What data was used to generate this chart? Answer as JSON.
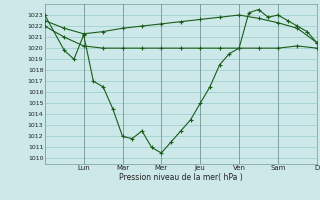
{
  "xlabel": "Pression niveau de la mer( hPa )",
  "background_color": "#cce8e8",
  "grid_color": "#99cccc",
  "line_color": "#1a5c1a",
  "line1_x": [
    0,
    12,
    24,
    36,
    48,
    60,
    72,
    84,
    96,
    108,
    120,
    132,
    144,
    156,
    168
  ],
  "line1_y": [
    1022.5,
    1021.8,
    1021.3,
    1021.5,
    1021.8,
    1022.0,
    1022.2,
    1022.4,
    1022.6,
    1022.8,
    1023.0,
    1022.7,
    1022.3,
    1021.8,
    1020.5
  ],
  "line2_x": [
    0,
    12,
    24,
    36,
    48,
    60,
    72,
    84,
    96,
    108,
    120,
    132,
    144,
    156,
    168
  ],
  "line2_y": [
    1022.0,
    1021.0,
    1020.2,
    1020.0,
    1020.0,
    1020.0,
    1020.0,
    1020.0,
    1020.0,
    1020.0,
    1020.0,
    1020.0,
    1020.0,
    1020.2,
    1020.0
  ],
  "line3_x": [
    0,
    12,
    18,
    24,
    30,
    36,
    42,
    48,
    54,
    60,
    66,
    72,
    78,
    84,
    90,
    96,
    102,
    108,
    114,
    120,
    126,
    132,
    138,
    144,
    150,
    156,
    162,
    168
  ],
  "line3_y": [
    1023.0,
    1019.8,
    1019.0,
    1021.2,
    1017.0,
    1016.5,
    1014.5,
    1012.0,
    1011.8,
    1012.5,
    1011.0,
    1010.5,
    1011.5,
    1012.5,
    1013.5,
    1015.0,
    1016.5,
    1018.5,
    1019.5,
    1020.0,
    1023.2,
    1023.5,
    1022.8,
    1023.0,
    1022.5,
    1022.0,
    1021.5,
    1020.5
  ],
  "day_positions": [
    0,
    24,
    48,
    72,
    96,
    120,
    144,
    168
  ],
  "day_labels": [
    "",
    "Lun",
    "Mar",
    "Mer",
    "Jeu",
    "Ven",
    "Sam",
    "D"
  ],
  "ylim": [
    1009.5,
    1024.0
  ],
  "xlim": [
    0,
    168
  ]
}
